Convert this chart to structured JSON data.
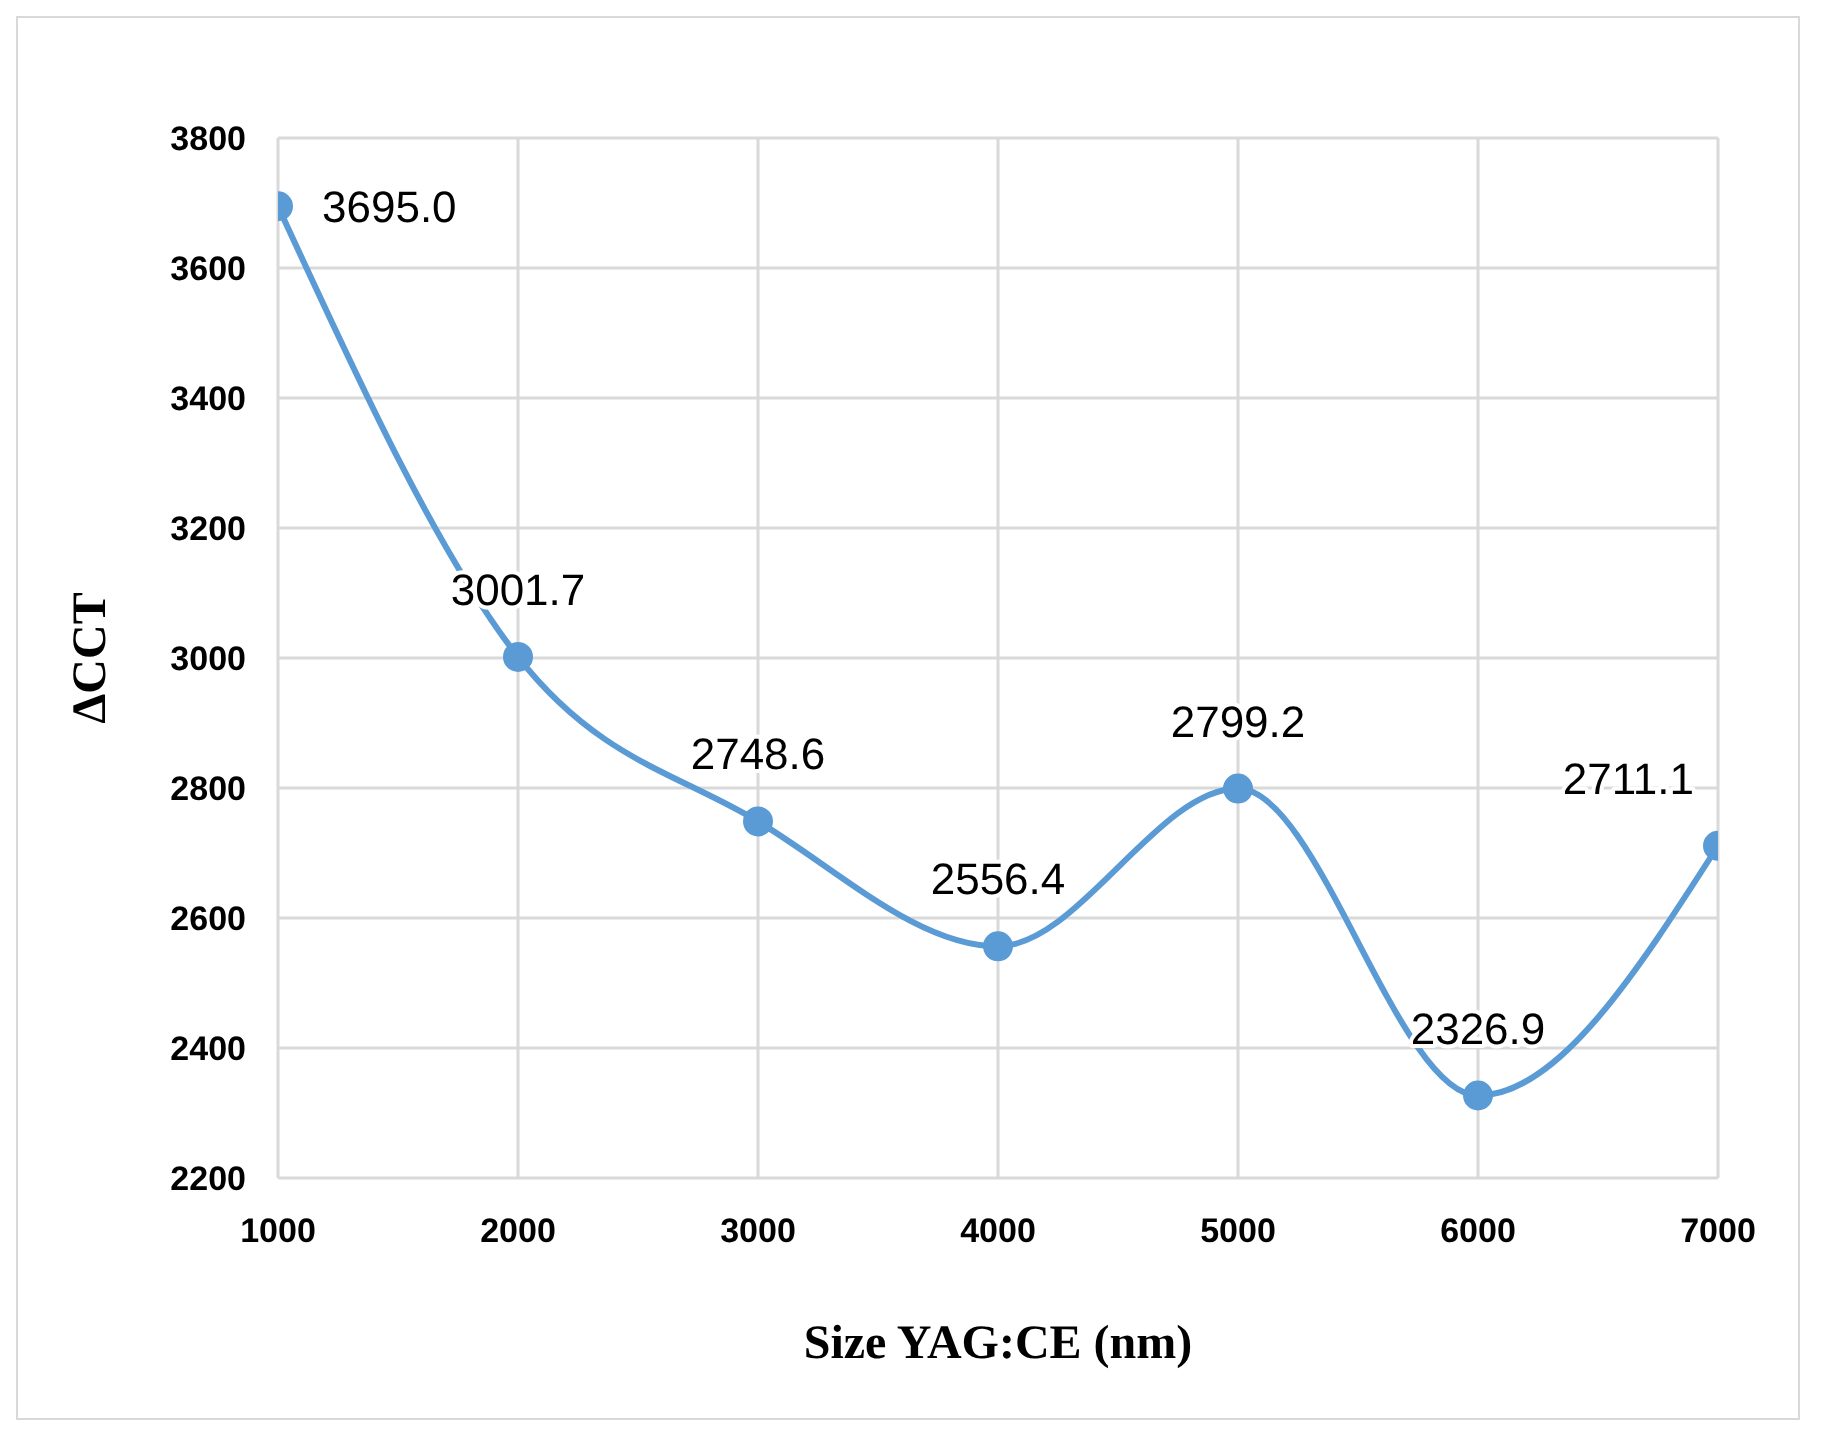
{
  "chart_data": {
    "type": "line",
    "xlabel": "Size YAG:CE (nm)",
    "ylabel": "ΔCCT",
    "x": [
      1000,
      2000,
      3000,
      4000,
      5000,
      6000,
      7000
    ],
    "series": [
      {
        "color": "#5b9bd5",
        "values": [
          3695.0,
          3001.7,
          2748.6,
          2556.4,
          2799.2,
          2326.9,
          2711.1
        ],
        "value_labels": [
          "3695.0",
          "3001.7",
          "2748.6",
          "2556.4",
          "2799.2",
          "2326.9",
          "2711.1"
        ]
      }
    ],
    "xlim": [
      1000,
      7000
    ],
    "xticks": [
      1000,
      2000,
      3000,
      4000,
      5000,
      6000,
      7000
    ],
    "ylim": [
      2200,
      3800
    ],
    "yticks": [
      2200,
      2400,
      2600,
      2800,
      3000,
      3200,
      3400,
      3600,
      3800
    ],
    "grid": true,
    "marker": "circle",
    "line_style": "solid",
    "legend": false
  }
}
